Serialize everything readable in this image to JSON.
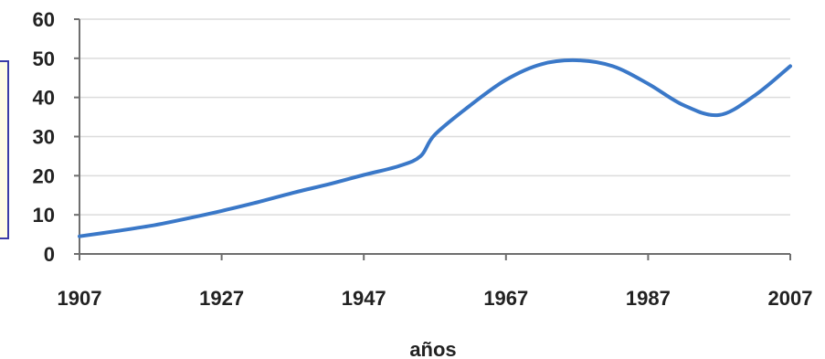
{
  "chart_data": {
    "type": "line",
    "xlabel": "años",
    "ylabel": "",
    "xlim": [
      1907,
      2007
    ],
    "ylim": [
      0,
      60
    ],
    "x_ticks": [
      1907,
      1927,
      1947,
      1967,
      1987,
      2007
    ],
    "y_ticks": [
      0,
      10,
      20,
      30,
      40,
      50,
      60
    ],
    "grid": "horizontal",
    "series": [
      {
        "color": "#3a78c8",
        "x": [
          1907,
          1912,
          1917,
          1922,
          1927,
          1932,
          1937,
          1942,
          1947,
          1952,
          1955,
          1957,
          1962,
          1967,
          1972,
          1977,
          1982,
          1987,
          1992,
          1997,
          2002,
          2007
        ],
        "y": [
          4.5,
          5.8,
          7.2,
          9.0,
          11.0,
          13.2,
          15.6,
          17.8,
          20.2,
          22.5,
          25.0,
          30.5,
          38.0,
          44.5,
          48.5,
          49.5,
          48.0,
          43.5,
          38.0,
          35.5,
          40.5,
          48.0
        ]
      }
    ]
  },
  "colors": {
    "line": "#3a78c8",
    "grid": "#dcdcdc",
    "axis": "#6e6e6e",
    "text": "#222222",
    "box_border": "#3a3aa8"
  }
}
